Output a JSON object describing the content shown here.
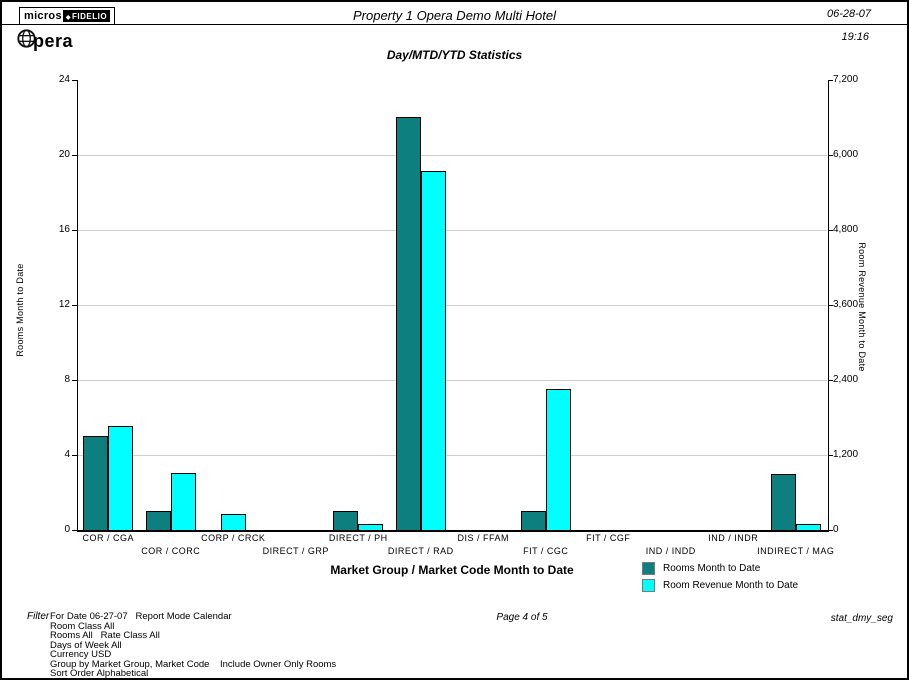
{
  "header": {
    "logo": {
      "micros": "micros",
      "fidelio": "FIDELIO",
      "opera_tail": "pera"
    },
    "title": "Property 1 Opera Demo Multi Hotel",
    "date": "06-28-07",
    "time": "19:16"
  },
  "chart_data": {
    "type": "bar",
    "title": "Day/MTD/YTD Statistics",
    "xlabel": "Market Group / Market Code Month to Date",
    "grid": true,
    "legend_position": "bottom-right",
    "categories": [
      "COR / CGA",
      "COR / CORC",
      "CORP / CRCK",
      "DIRECT / GRP",
      "DIRECT / PH",
      "DIRECT / RAD",
      "DIS / FFAM",
      "FIT / CGC",
      "FIT / CGF",
      "IND / INDD",
      "IND / INDR",
      "INDIRECT / MAG"
    ],
    "series": [
      {
        "name": "Rooms Month to Date",
        "axis": "left",
        "color": "#0E7F7F",
        "values": [
          5,
          1,
          0,
          0,
          1,
          22,
          0,
          1,
          0,
          0,
          0,
          3
        ]
      },
      {
        "name": "Room Revenue Month to Date",
        "axis": "right",
        "color": "#00FFFF",
        "values": [
          1660,
          910,
          260,
          0,
          100,
          5750,
          0,
          2260,
          0,
          0,
          0,
          90
        ]
      }
    ],
    "left_axis": {
      "label": "Rooms Month to Date",
      "min": 0,
      "max": 24,
      "ticks": [
        "0",
        "4",
        "8",
        "12",
        "16",
        "20",
        "24"
      ]
    },
    "right_axis": {
      "label": "Room Revenue Month to Date",
      "min": 0,
      "max": 7200,
      "ticks": [
        "0",
        "1,200",
        "2,400",
        "3,600",
        "4,800",
        "6,000",
        "7,200"
      ]
    }
  },
  "footer": {
    "filter_label": "Filter",
    "filter_lines": [
      "For Date 06-27-07   Report Mode Calendar",
      "Room Class All",
      "Rooms All   Rate Class All",
      "Days of Week All",
      "Currency USD",
      "Group by Market Group, Market Code    Include Owner Only Rooms",
      "Sort Order Alphabetical"
    ],
    "page": "Page 4 of 5",
    "report_id": "stat_dmy_seg"
  }
}
